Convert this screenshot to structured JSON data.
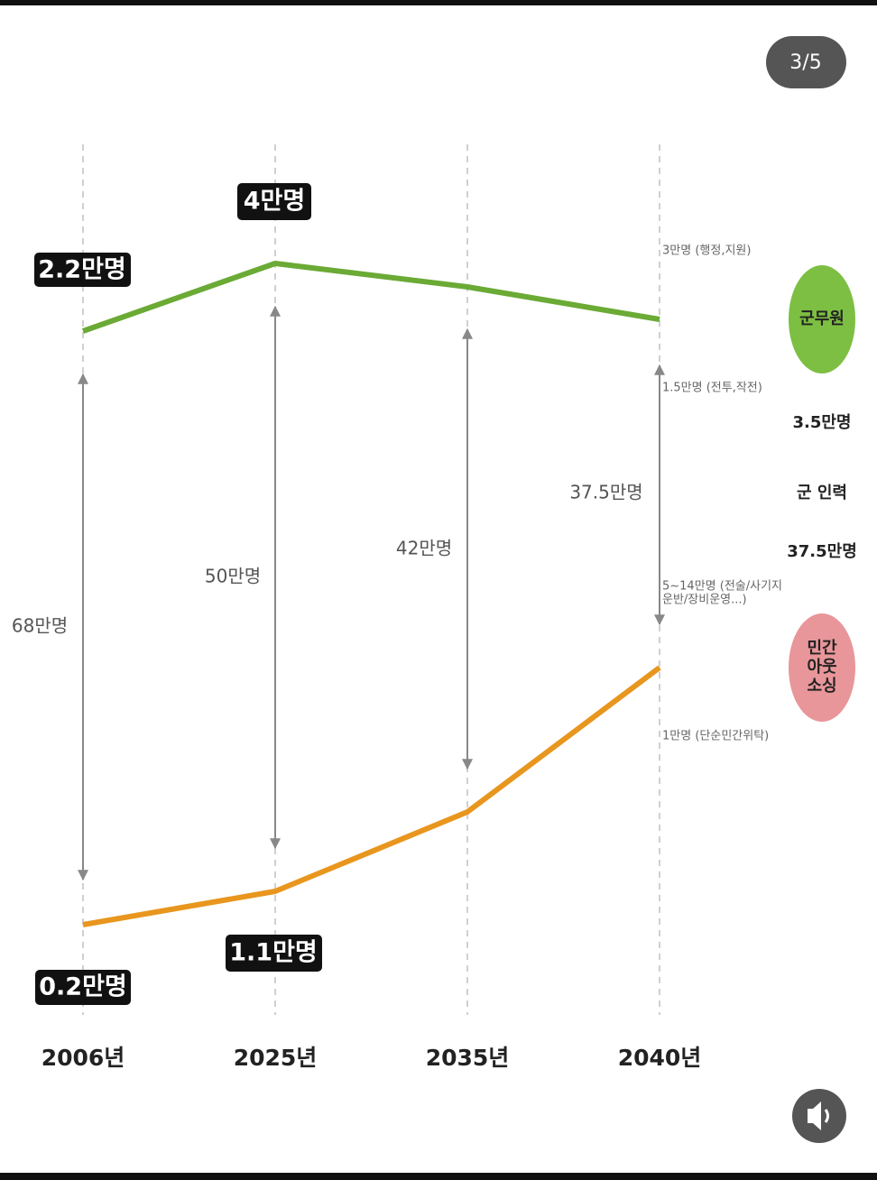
{
  "page_indicator": "3/5",
  "years": [
    "2006년",
    "2025년",
    "2035년",
    "2040년"
  ],
  "military_civilian_labels": [
    "2.2만명",
    "4만명"
  ],
  "outsourcing_labels": [
    "0.2만명",
    "1.1만명"
  ],
  "force_labels": [
    "68만명",
    "50만명",
    "42만명",
    "37.5만명"
  ],
  "notes": {
    "admin": "3만명 (행정,지원)",
    "combat": "1.5만명 (전투,작전)",
    "tactical": [
      "5~14만명 (전술/사기지",
      "운반/장비운영...)"
    ],
    "simple": "1만명 (단순민간위탁)"
  },
  "legend": {
    "civilian_staff": {
      "label": "군무원",
      "value": "3.5만명"
    },
    "military": {
      "label": "군 인력",
      "value": "37.5만명"
    },
    "outsourcing": {
      "label": [
        "민간",
        "아웃",
        "소싱"
      ]
    }
  }
}
